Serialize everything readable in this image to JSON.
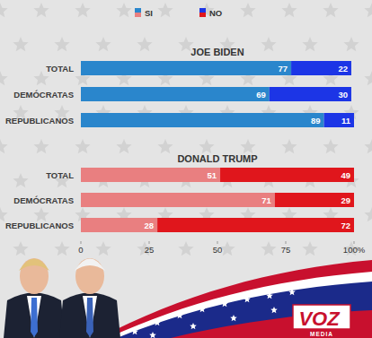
{
  "chart_data": [
    {
      "type": "bar",
      "orientation": "horizontal",
      "stacked": true,
      "data_labels": true,
      "title": "JOE BIDEN",
      "categories": [
        "TOTAL",
        "DEMÓCRATAS",
        "REPUBLICANOS"
      ],
      "series": [
        {
          "name": "SI",
          "color": "#2a86cc",
          "values": [
            77,
            69,
            89
          ]
        },
        {
          "name": "NO",
          "color": "#1c35e6",
          "values": [
            22,
            30,
            11
          ]
        }
      ],
      "xlim": [
        0,
        100
      ],
      "legend": "top",
      "tick_labels": "y",
      "grid": false
    },
    {
      "type": "bar",
      "orientation": "horizontal",
      "stacked": true,
      "data_labels": true,
      "title": "DONALD TRUMP",
      "categories": [
        "TOTAL",
        "DEMÓCRATAS",
        "REPUBLICANOS"
      ],
      "series": [
        {
          "color": "#e97f80",
          "values": [
            51,
            71,
            28
          ]
        },
        {
          "color": "#e0161c",
          "values": [
            49,
            29,
            72
          ]
        }
      ],
      "xlim": [
        0,
        100
      ],
      "xticks": [
        0,
        25,
        50,
        75,
        {
          "value": 100,
          "label": "100%"
        }
      ],
      "grid": false
    }
  ],
  "logo": {
    "text": "VOZ",
    "subtext": "MEDIA"
  }
}
